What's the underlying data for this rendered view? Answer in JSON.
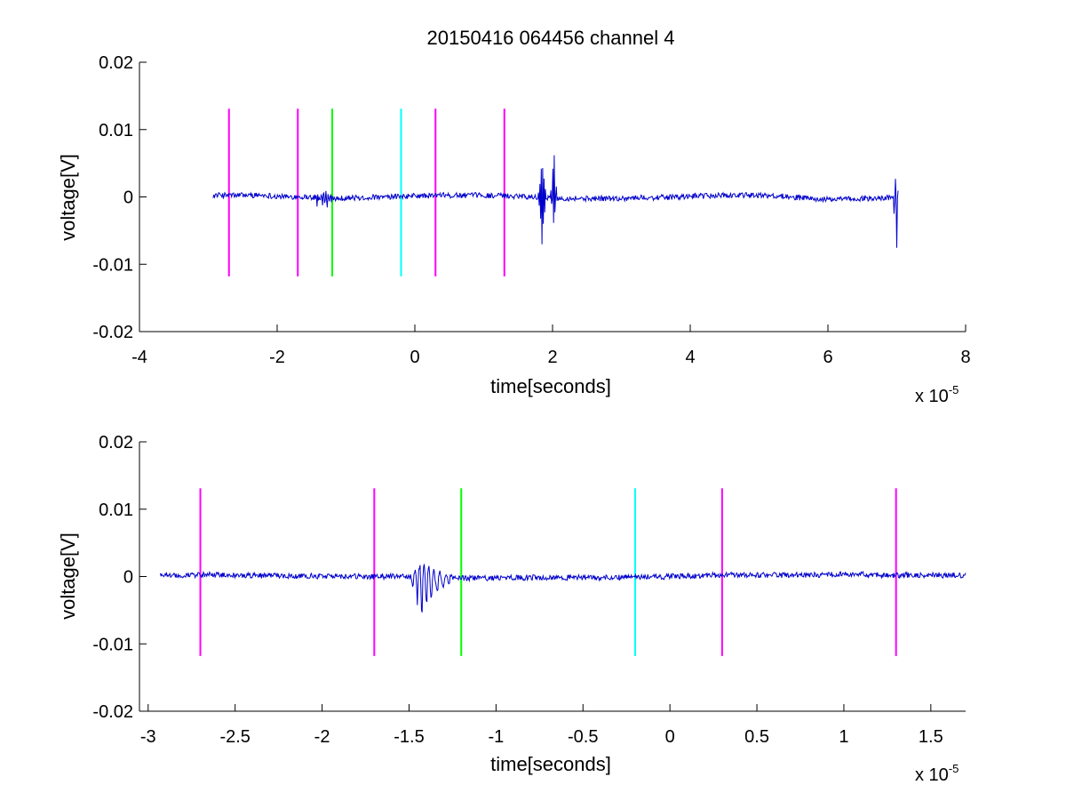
{
  "figure": {
    "title": "20150416 064456 channel 4",
    "colors": {
      "trace": "#0000cc",
      "axis": "#000000",
      "background": "#ffffff"
    }
  },
  "chart_data": [
    {
      "type": "line",
      "title": "20150416 064456 channel 4",
      "xlabel": "time[seconds]",
      "ylabel": "voltage[V]",
      "x_exponent_label": "x 10",
      "x_exponent_power": "-5",
      "x_scale": 1e-05,
      "xlim": [
        -4,
        8
      ],
      "ylim": [
        -0.02,
        0.02
      ],
      "xticks": [
        -4,
        -2,
        0,
        2,
        4,
        6,
        8
      ],
      "xtick_labels": [
        "-4",
        "-2",
        "0",
        "2",
        "4",
        "6",
        "8"
      ],
      "yticks": [
        0.02,
        0.01,
        0,
        -0.01,
        -0.02
      ],
      "ytick_labels": [
        "0.02",
        "0.01",
        "0",
        "-0.01",
        "-0.02"
      ],
      "grid": false,
      "series": [
        {
          "color": "#0000cc",
          "x_range": [
            -2.93,
            7.02
          ],
          "baseline_noise": 0.0004,
          "events": [
            {
              "x": -1.42,
              "peak": 0.0025,
              "trough": -0.0073,
              "width": 0.06
            },
            {
              "x": -1.3,
              "peak": 0.0015,
              "trough": -0.0025,
              "width": 0.1
            },
            {
              "x": 1.85,
              "peak": 0.0078,
              "trough": -0.0098,
              "width": 0.06
            },
            {
              "x": 2.02,
              "peak": 0.012,
              "trough": -0.005,
              "width": 0.05
            },
            {
              "x": 6.99,
              "peak": 0.0046,
              "trough": -0.0108,
              "width": 0.04
            }
          ]
        }
      ],
      "vertical_markers": [
        {
          "x": -2.7,
          "y0": -0.0118,
          "y1": 0.0131,
          "color": "#ff00ff"
        },
        {
          "x": -1.7,
          "y0": -0.0118,
          "y1": 0.0131,
          "color": "#ff00ff"
        },
        {
          "x": -1.2,
          "y0": -0.0118,
          "y1": 0.0131,
          "color": "#00ff00"
        },
        {
          "x": -0.2,
          "y0": -0.0118,
          "y1": 0.0131,
          "color": "#00ffff"
        },
        {
          "x": 0.3,
          "y0": -0.0118,
          "y1": 0.0131,
          "color": "#ff00ff"
        },
        {
          "x": 1.3,
          "y0": -0.0118,
          "y1": 0.0131,
          "color": "#ff00ff"
        }
      ]
    },
    {
      "type": "line",
      "title": "",
      "xlabel": "time[seconds]",
      "ylabel": "voltage[V]",
      "x_exponent_label": "x 10",
      "x_exponent_power": "-5",
      "x_scale": 1e-05,
      "xlim": [
        -3.05,
        1.7
      ],
      "ylim": [
        -0.02,
        0.02
      ],
      "xticks": [
        -3,
        -2.5,
        -2,
        -1.5,
        -1,
        -0.5,
        0,
        0.5,
        1,
        1.5
      ],
      "xtick_labels": [
        "-3",
        "-2.5",
        "-2",
        "-1.5",
        "-1",
        "-0.5",
        "0",
        "0.5",
        "1",
        "1.5"
      ],
      "yticks": [
        0.02,
        0.01,
        0,
        -0.01,
        -0.02
      ],
      "ytick_labels": [
        "0.02",
        "0.01",
        "0",
        "-0.01",
        "-0.02"
      ],
      "grid": false,
      "series": [
        {
          "color": "#0000cc",
          "x_range": [
            -2.93,
            1.7
          ],
          "baseline_noise": 0.0004,
          "events": [
            {
              "x": -1.42,
              "peak": 0.0028,
              "trough": -0.0072,
              "width": 0.08
            },
            {
              "x": -1.33,
              "peak": 0.0015,
              "trough": -0.0025,
              "width": 0.1
            }
          ]
        }
      ],
      "vertical_markers": [
        {
          "x": -2.7,
          "y0": -0.0118,
          "y1": 0.0131,
          "color": "#ff00ff"
        },
        {
          "x": -1.7,
          "y0": -0.0118,
          "y1": 0.0131,
          "color": "#ff00ff"
        },
        {
          "x": -1.2,
          "y0": -0.0118,
          "y1": 0.0131,
          "color": "#00ff00"
        },
        {
          "x": -0.2,
          "y0": -0.0118,
          "y1": 0.0131,
          "color": "#00ffff"
        },
        {
          "x": 0.3,
          "y0": -0.0118,
          "y1": 0.0131,
          "color": "#ff00ff"
        },
        {
          "x": 1.3,
          "y0": -0.0118,
          "y1": 0.0131,
          "color": "#ff00ff"
        }
      ]
    }
  ]
}
